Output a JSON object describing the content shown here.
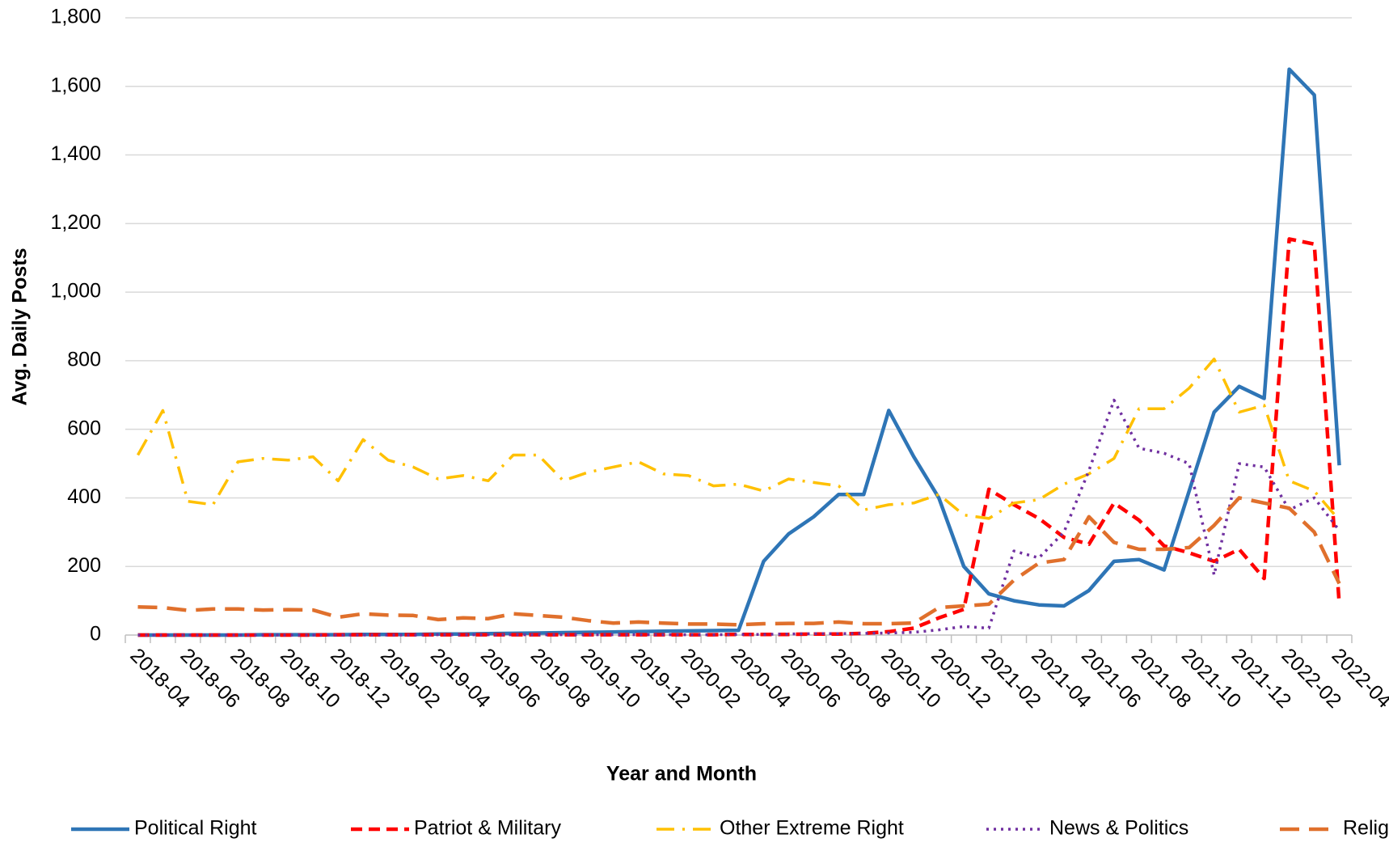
{
  "chart_data": {
    "type": "line",
    "x_label": "Year and Month",
    "y_label": "Avg. Daily Posts",
    "categories": [
      "2018-04",
      null,
      "2018-06",
      null,
      "2018-08",
      null,
      "2018-10",
      null,
      "2018-12",
      null,
      "2019-02",
      null,
      "2019-04",
      null,
      "2019-06",
      null,
      "2019-08",
      null,
      "2019-10",
      null,
      "2019-12",
      null,
      "2020-02",
      null,
      "2020-04",
      null,
      "2020-06",
      null,
      "2020-08",
      null,
      "2020-10",
      null,
      "2020-12",
      null,
      "2021-02",
      null,
      "2021-04",
      null,
      "2021-06",
      null,
      "2021-08",
      null,
      "2021-10",
      null,
      "2021-12",
      null,
      "2022-02",
      null,
      "2022-04"
    ],
    "ylim": [
      0,
      1800
    ],
    "yticks": [
      0,
      {
        "value": 200,
        "label": "200"
      },
      400,
      600,
      800,
      {
        "value": 1000,
        "label": "1,000"
      },
      {
        "value": 1200,
        "label": "1,200"
      },
      {
        "value": 1400,
        "label": "1,400"
      },
      {
        "value": 1600,
        "label": "1,600"
      },
      {
        "value": 1800,
        "label": "1,800"
      }
    ],
    "grid": true,
    "legend": "bottom",
    "series": [
      {
        "name": "Political Right",
        "color": "#2e75b6",
        "dash": "solid",
        "values": [
          0,
          0,
          0,
          0,
          0,
          1,
          1,
          1,
          1,
          2,
          2,
          2,
          3,
          3,
          4,
          5,
          6,
          7,
          8,
          9,
          10,
          11,
          12,
          13,
          14,
          215,
          295,
          345,
          410,
          410,
          655,
          520,
          400,
          200,
          120,
          100,
          88,
          85,
          130,
          215,
          220,
          190,
          420,
          650,
          725,
          690,
          1650,
          1575,
          495
        ]
      },
      {
        "name": "Patriot & Military",
        "color": "#ff0000",
        "dash": "dashed",
        "values": [
          0,
          0,
          0,
          0,
          0,
          0,
          0,
          0,
          1,
          1,
          1,
          1,
          1,
          1,
          1,
          1,
          1,
          1,
          1,
          1,
          1,
          1,
          1,
          1,
          2,
          2,
          2,
          3,
          3,
          5,
          10,
          20,
          50,
          75,
          425,
          380,
          340,
          285,
          265,
          385,
          335,
          260,
          240,
          215,
          250,
          165,
          1155,
          1140,
          90
        ]
      },
      {
        "name": "Other Extreme Right",
        "color": "#ffc000",
        "dash": "dashdot",
        "values": [
          525,
          655,
          390,
          380,
          505,
          515,
          510,
          520,
          450,
          570,
          510,
          490,
          455,
          465,
          450,
          525,
          525,
          450,
          475,
          490,
          505,
          470,
          465,
          435,
          440,
          420,
          455,
          445,
          435,
          365,
          380,
          385,
          410,
          350,
          340,
          385,
          395,
          440,
          470,
          515,
          660,
          660,
          720,
          805,
          650,
          670,
          450,
          420,
          335
        ]
      },
      {
        "name": "News & Politics",
        "color": "#7030a0",
        "dash": "dotted",
        "values": [
          0,
          0,
          0,
          0,
          0,
          0,
          0,
          0,
          0,
          0,
          0,
          0,
          1,
          1,
          1,
          1,
          1,
          1,
          1,
          1,
          1,
          1,
          1,
          1,
          2,
          2,
          3,
          4,
          4,
          5,
          6,
          8,
          15,
          25,
          20,
          245,
          225,
          300,
          480,
          685,
          545,
          530,
          500,
          175,
          500,
          490,
          365,
          400,
          305
        ]
      },
      {
        "name": "Religion",
        "color": "#e0702c",
        "dash": "longdash",
        "values": [
          82,
          80,
          72,
          76,
          76,
          73,
          74,
          73,
          52,
          62,
          58,
          57,
          45,
          50,
          48,
          62,
          57,
          52,
          42,
          35,
          38,
          35,
          32,
          32,
          30,
          33,
          34,
          34,
          38,
          33,
          33,
          35,
          80,
          85,
          90,
          160,
          210,
          220,
          345,
          270,
          250,
          250,
          255,
          320,
          400,
          385,
          370,
          300,
          150
        ]
      }
    ]
  }
}
